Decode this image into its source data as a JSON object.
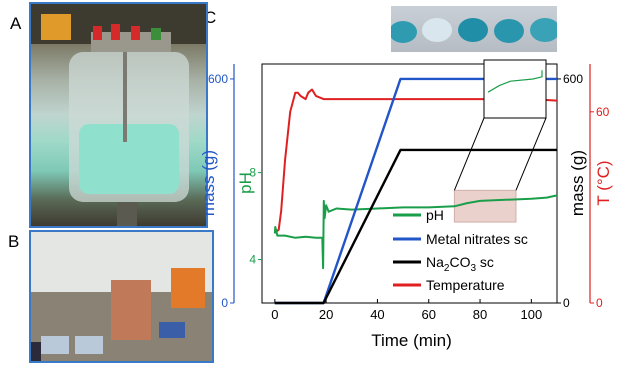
{
  "panels": {
    "a_label": "A",
    "b_label": "B",
    "c_label": "C"
  },
  "legend": {
    "ph": "pH",
    "metal": "Metal nitrates sc",
    "na_main": "Na",
    "na_sub": "2",
    "na_main2": "CO",
    "na_sub2": "3",
    "na_tail": " sc",
    "temp": "Temperature"
  },
  "colors": {
    "ph": "#1a9e4a",
    "metal": "#2255c8",
    "na2co3": "#000000",
    "temperature": "#e02020",
    "highlight_fill": "#e8c9c4",
    "highlight_stroke": "#c9a29c",
    "photo_border": "#3a78c8"
  },
  "chart_data": {
    "type": "line",
    "xlabel": "Time (min)",
    "xlim": [
      -5,
      110
    ],
    "x_ticks": [
      0,
      20,
      40,
      60,
      80,
      100
    ],
    "axes": {
      "mass_metal": {
        "label": "mass (g)",
        "color": "#2255c8",
        "ylim": [
          0,
          640
        ],
        "ticks": [
          0,
          600
        ]
      },
      "ph": {
        "label": "pH",
        "color": "#1a9e4a",
        "ylim": [
          2,
          13
        ],
        "ticks": [
          4,
          8
        ]
      },
      "mass_na": {
        "label": "mass (g)",
        "color": "#000000",
        "ylim": [
          0,
          640
        ],
        "ticks": [
          0,
          600
        ]
      },
      "temperature": {
        "label": "T (°C)",
        "color": "#e02020",
        "ylim": [
          0,
          75
        ],
        "ticks": [
          0,
          60
        ]
      }
    },
    "series": [
      {
        "name": "pH",
        "axis": "ph",
        "x": [
          0,
          0.2,
          1,
          4,
          8,
          12,
          16,
          18.5,
          18.8,
          19.1,
          19.4,
          20,
          21,
          24,
          30,
          40,
          50,
          60,
          70,
          75,
          80,
          90,
          100,
          106,
          110
        ],
        "y": [
          5.2,
          5.5,
          5.1,
          5.1,
          5.0,
          5.05,
          5.0,
          5.0,
          3.6,
          6.7,
          5.9,
          6.5,
          6.2,
          6.35,
          6.3,
          6.35,
          6.4,
          6.4,
          6.45,
          6.6,
          6.7,
          6.75,
          6.8,
          6.85,
          6.95
        ]
      },
      {
        "name": "Metal nitrates sc",
        "axis": "mass_metal",
        "x": [
          0,
          19,
          49,
          110
        ],
        "y": [
          0,
          0,
          600,
          600
        ]
      },
      {
        "name": "Na2CO3 sc",
        "axis": "mass_na",
        "x": [
          0,
          19,
          49,
          110
        ],
        "y": [
          0,
          0,
          410,
          410
        ]
      },
      {
        "name": "Temperature",
        "axis": "temperature",
        "x": [
          0,
          1.5,
          2.5,
          4,
          6,
          8,
          9,
          10,
          12,
          13,
          14.5,
          16,
          19,
          30,
          40,
          60,
          80,
          100,
          110
        ],
        "y": [
          22,
          23,
          29,
          45,
          60,
          66,
          66,
          65,
          64,
          66,
          67,
          65,
          64,
          64,
          64,
          64,
          64,
          64,
          63.5
        ]
      }
    ],
    "highlight_region": {
      "x": [
        70,
        94
      ],
      "ph": [
        6.0,
        7.0
      ]
    },
    "inset": {
      "note": "magnified view of highlighted pH region",
      "x": [
        70,
        94
      ],
      "ph": [
        6.0,
        7.0
      ]
    }
  }
}
